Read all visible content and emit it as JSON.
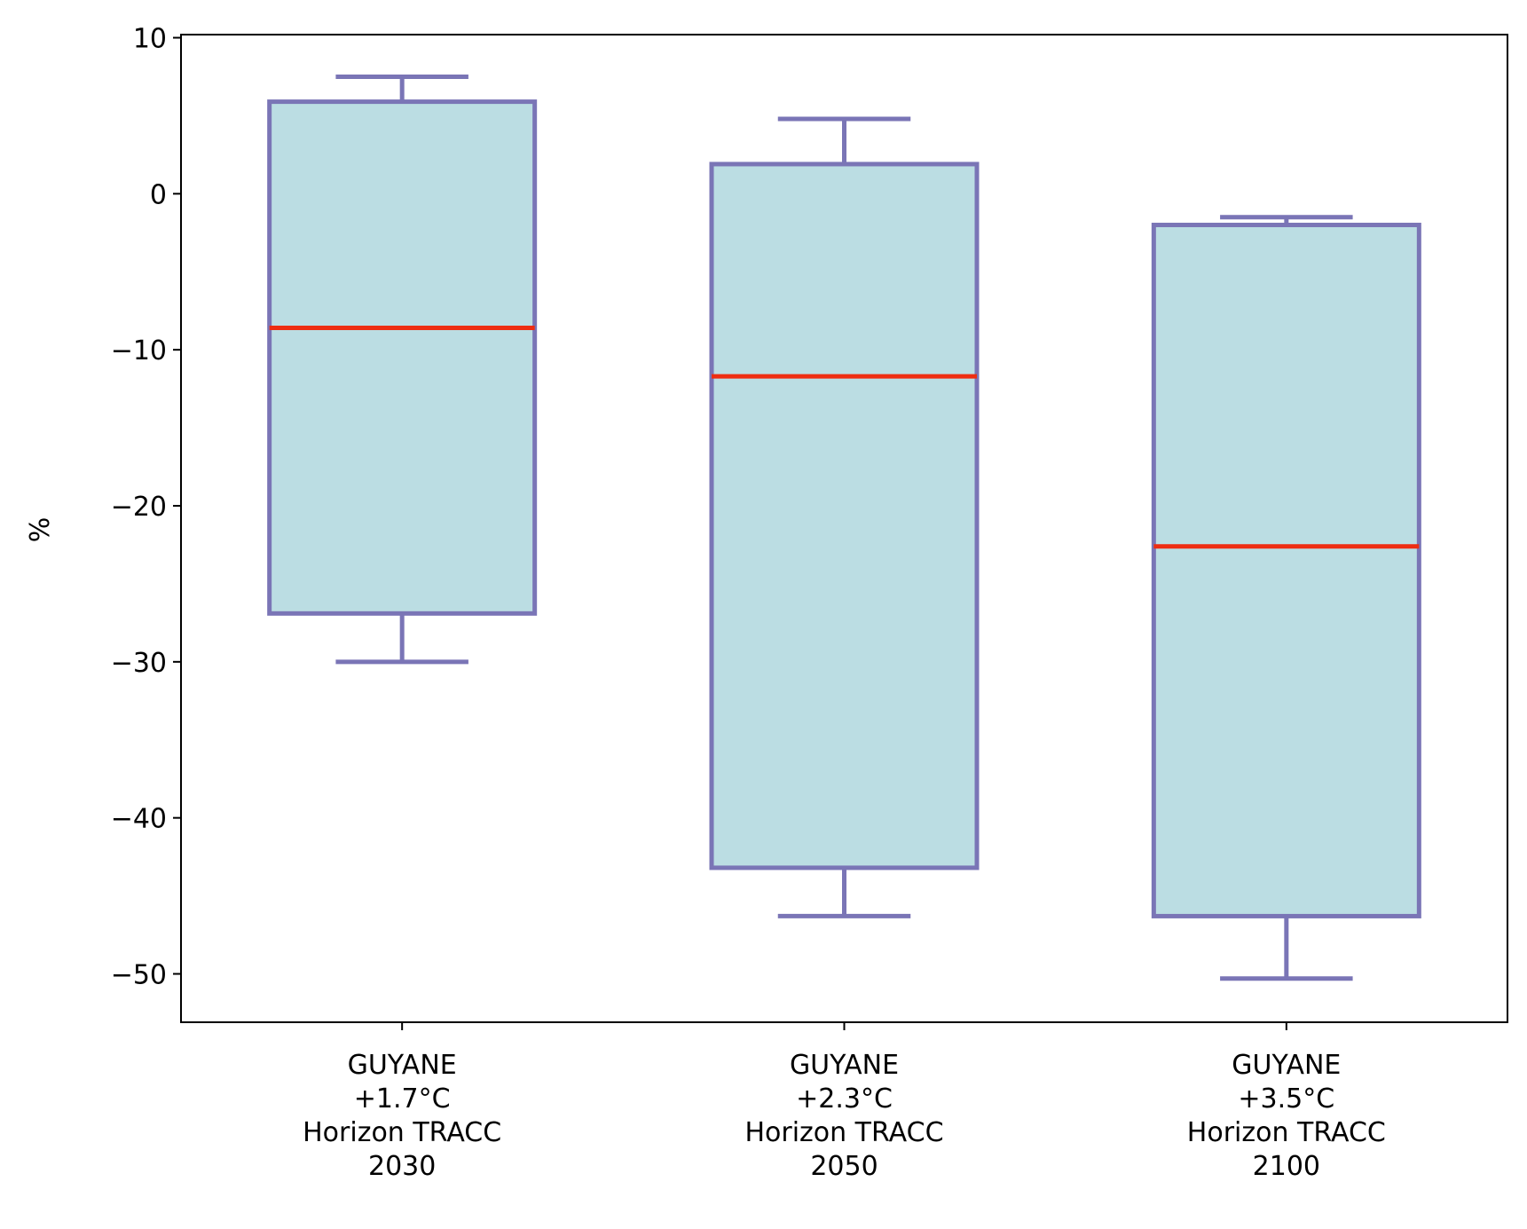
{
  "chart_data": {
    "type": "box",
    "title": "",
    "xlabel": "",
    "ylabel": "%",
    "ylim": [
      -53.1,
      10.2
    ],
    "yticks": [
      10,
      0,
      -10,
      -20,
      -30,
      -40,
      -50
    ],
    "ytick_labels": [
      "10",
      "0",
      "−10",
      "−20",
      "−30",
      "−40",
      "−50"
    ],
    "categories": [
      [
        "GUYANE",
        "+1.7°C",
        "Horizon TRACC",
        "2030"
      ],
      [
        "GUYANE",
        "+2.3°C",
        "Horizon TRACC",
        "2050"
      ],
      [
        "GUYANE",
        "+3.5°C",
        "Horizon TRACC",
        "2100"
      ]
    ],
    "boxes": [
      {
        "whisker_low": -30.0,
        "q1": -26.9,
        "median": -8.6,
        "q3": 5.9,
        "whisker_high": 7.5
      },
      {
        "whisker_low": -46.3,
        "q1": -43.2,
        "median": -11.7,
        "q3": 1.9,
        "whisker_high": 4.8
      },
      {
        "whisker_low": -50.3,
        "q1": -46.3,
        "median": -22.6,
        "q3": -2.0,
        "whisker_high": -1.5
      }
    ],
    "colors": {
      "box_fill": "#bbdde3",
      "box_edge": "#7a75b6",
      "median": "#ee2d12",
      "axis": "#000000"
    }
  }
}
